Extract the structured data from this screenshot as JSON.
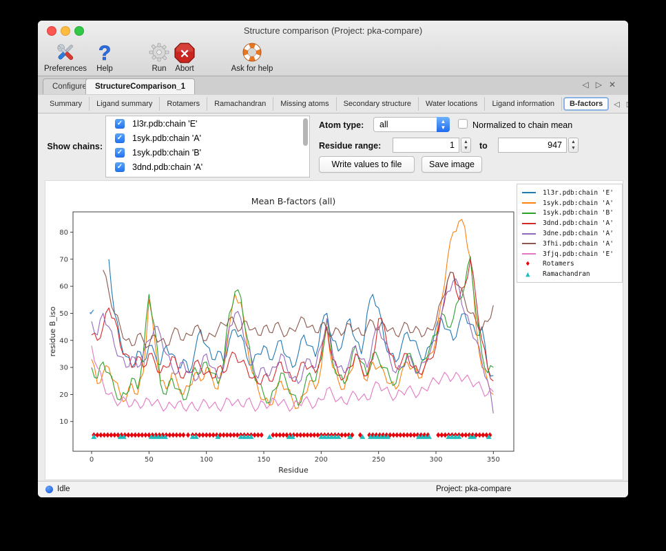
{
  "window": {
    "title": "Structure comparison (Project: pka-compare)"
  },
  "toolbar": {
    "items": [
      {
        "label": "Preferences",
        "icon": "tools-icon"
      },
      {
        "label": "Help",
        "icon": "question-mark-icon"
      },
      {
        "label": "Run",
        "icon": "gear-icon"
      },
      {
        "label": "Abort",
        "icon": "stop-x-icon"
      },
      {
        "label": "Ask for help",
        "icon": "lifebuoy-icon"
      }
    ]
  },
  "tabs": {
    "main": [
      {
        "label": "Configure",
        "active": false
      },
      {
        "label": "StructureComparison_1",
        "active": true
      }
    ],
    "nav_back": "◁",
    "nav_forward": "▷",
    "close": "✕"
  },
  "subtabs": {
    "items": [
      "Summary",
      "Ligand summary",
      "Rotamers",
      "Ramachandran",
      "Missing atoms",
      "Secondary structure",
      "Water locations",
      "Ligand information",
      "B-factors"
    ],
    "active": "B-factors",
    "nav_back": "◁",
    "nav_forward": "▷"
  },
  "controls": {
    "show_chains_label": "Show chains:",
    "chains": [
      {
        "label": "1l3r.pdb:chain 'E'",
        "checked": true
      },
      {
        "label": "1syk.pdb:chain 'A'",
        "checked": true
      },
      {
        "label": "1syk.pdb:chain 'B'",
        "checked": true
      },
      {
        "label": "3dnd.pdb:chain 'A'",
        "checked": true
      }
    ],
    "atom_type_label": "Atom type:",
    "atom_type_value": "all",
    "normalized_label": "Normalized to chain mean",
    "normalized_checked": false,
    "residue_range_label": "Residue range:",
    "residue_from": "1",
    "to_label": "to",
    "residue_to": "947",
    "write_button": "Write values to file",
    "save_button": "Save image"
  },
  "statusbar": {
    "status": "Idle",
    "project": "Project: pka-compare"
  },
  "colors": {
    "accent_blue": "#2f7cf6",
    "rotamer_red": "#e8000b",
    "ramachandran_cyan": "#1fbfbf"
  },
  "chart_data": {
    "type": "line",
    "title": "Mean B-factors (all)",
    "xlabel": "Residue",
    "ylabel": "residue B_iso",
    "xticks": [
      0,
      50,
      100,
      150,
      200,
      250,
      300,
      350
    ],
    "yticks": [
      10,
      20,
      30,
      40,
      50,
      60,
      70,
      80
    ],
    "xlim": [
      -16.2,
      367.8
    ],
    "ylim": [
      -1,
      87.5
    ],
    "grid": false,
    "legend_position": "outside-right",
    "x_start": 0,
    "x_step": 5,
    "series": [
      {
        "name": "1l3r.pdb:chain 'E'",
        "color": "#1f77b4",
        "values": [
          null,
          null,
          null,
          70,
          50,
          40,
          34,
          30,
          36,
          32,
          38,
          35,
          31,
          38,
          35,
          30,
          33,
          28,
          36,
          44,
          38,
          33,
          36,
          32,
          40,
          44,
          42,
          34,
          31,
          35,
          38,
          33,
          36,
          40,
          34,
          30,
          35,
          42,
          38,
          34,
          45,
          50,
          40,
          36,
          42,
          48,
          40,
          35,
          50,
          57,
          52,
          40,
          35,
          32,
          38,
          43,
          40,
          36,
          33,
          38,
          45,
          48,
          44,
          40,
          46,
          50,
          46,
          42,
          45,
          30,
          27
        ]
      },
      {
        "name": "1syk.pdb:chain 'A'",
        "color": "#ff7f0e",
        "values": [
          33,
          24,
          28,
          30,
          25,
          20,
          18,
          24,
          20,
          28,
          55,
          40,
          25,
          22,
          28,
          24,
          20,
          23,
          28,
          25,
          30,
          26,
          22,
          30,
          45,
          57,
          54,
          40,
          28,
          22,
          18,
          16,
          20,
          25,
          22,
          18,
          15,
          20,
          25,
          22,
          30,
          45,
          30,
          25,
          22,
          28,
          35,
          30,
          25,
          32,
          30,
          28,
          24,
          22,
          28,
          32,
          30,
          26,
          30,
          35,
          40,
          55,
          70,
          80,
          84,
          82,
          70,
          45,
          30,
          25,
          20
        ]
      },
      {
        "name": "1syk.pdb:chain 'B'",
        "color": "#2ca02c",
        "values": [
          30,
          26,
          32,
          28,
          22,
          18,
          20,
          26,
          22,
          35,
          57,
          45,
          24,
          20,
          26,
          22,
          18,
          22,
          30,
          28,
          32,
          28,
          24,
          32,
          50,
          58,
          56,
          42,
          30,
          24,
          20,
          17,
          22,
          28,
          24,
          20,
          16,
          22,
          28,
          25,
          33,
          48,
          32,
          27,
          24,
          30,
          38,
          32,
          27,
          35,
          33,
          30,
          26,
          24,
          30,
          35,
          32,
          28,
          33,
          38,
          42,
          50,
          45,
          48,
          55,
          60,
          71,
          50,
          35,
          28,
          30
        ]
      },
      {
        "name": "3dnd.pdb:chain 'A'",
        "color": "#d62728",
        "values": [
          42,
          40,
          45,
          52,
          48,
          38,
          35,
          30,
          34,
          30,
          35,
          32,
          28,
          30,
          34,
          30,
          26,
          28,
          32,
          30,
          28,
          26,
          30,
          28,
          33,
          35,
          32,
          30,
          26,
          24,
          27,
          25,
          28,
          32,
          28,
          25,
          28,
          32,
          30,
          28,
          35,
          45,
          33,
          28,
          26,
          30,
          35,
          30,
          27,
          33,
          48,
          45,
          35,
          30,
          32,
          35,
          30,
          28,
          30,
          33,
          38,
          50,
          62,
          65,
          55,
          60,
          70,
          55,
          40,
          30,
          25
        ]
      },
      {
        "name": "3dne.pdb:chain 'A'",
        "color": "#9467bd",
        "values": [
          47,
          42,
          50,
          45,
          38,
          34,
          30,
          34,
          30,
          35,
          40,
          45,
          42,
          35,
          30,
          28,
          32,
          28,
          25,
          30,
          35,
          30,
          26,
          30,
          45,
          50,
          48,
          38,
          32,
          26,
          30,
          27,
          30,
          35,
          30,
          26,
          24,
          30,
          33,
          30,
          38,
          48,
          35,
          30,
          28,
          33,
          38,
          33,
          30,
          40,
          45,
          40,
          33,
          28,
          30,
          34,
          31,
          28,
          32,
          36,
          40,
          50,
          58,
          62,
          60,
          50,
          45,
          40,
          32,
          25,
          13
        ]
      },
      {
        "name": "3fhi.pdb:chain 'A'",
        "color": "#8c564b",
        "values": [
          null,
          null,
          66,
          58,
          50,
          45,
          40,
          38,
          42,
          40,
          38,
          42,
          40,
          38,
          42,
          44,
          40,
          42,
          45,
          43,
          40,
          42,
          44,
          46,
          48,
          46,
          44,
          47,
          44,
          42,
          45,
          43,
          46,
          44,
          42,
          44,
          46,
          48,
          45,
          43,
          46,
          44,
          42,
          44,
          43,
          46,
          44,
          42,
          45,
          47,
          44,
          46,
          44,
          42,
          44,
          46,
          43,
          44,
          42,
          44,
          47,
          55,
          62,
          65,
          60,
          55,
          50,
          47,
          44,
          47,
          53
        ]
      },
      {
        "name": "3fjq.pdb:chain 'E'",
        "color": "#e377c2",
        "values": [
          38,
          30,
          24,
          20,
          18,
          17,
          18,
          16,
          17,
          16,
          18,
          17,
          16,
          15,
          16,
          17,
          15,
          16,
          15,
          16,
          17,
          16,
          15,
          16,
          18,
          17,
          16,
          18,
          16,
          15,
          17,
          16,
          18,
          17,
          16,
          15,
          17,
          18,
          17,
          16,
          18,
          22,
          20,
          18,
          17,
          19,
          20,
          19,
          18,
          22,
          24,
          22,
          20,
          19,
          21,
          22,
          21,
          20,
          22,
          24,
          25,
          26,
          27,
          26,
          27,
          26,
          25,
          24,
          22,
          20,
          21
        ]
      }
    ],
    "markers": [
      {
        "name": "Rotamers",
        "color": "#e8000b",
        "shape": "diamond",
        "glyph": "♦",
        "y": 5,
        "x": [
          2,
          5,
          8,
          11,
          14,
          17,
          20,
          23,
          26,
          29,
          32,
          35,
          38,
          41,
          44,
          47,
          50,
          53,
          56,
          59,
          62,
          65,
          68,
          71,
          74,
          77,
          80,
          84,
          88,
          91,
          94,
          97,
          100,
          103,
          106,
          109,
          112,
          115,
          118,
          121,
          124,
          127,
          130,
          133,
          136,
          139,
          142,
          145,
          148,
          158,
          161,
          164,
          167,
          170,
          173,
          176,
          179,
          182,
          185,
          188,
          191,
          194,
          197,
          200,
          203,
          206,
          209,
          212,
          215,
          218,
          221,
          224,
          227,
          234,
          242,
          245,
          248,
          251,
          254,
          257,
          260,
          263,
          266,
          269,
          272,
          275,
          278,
          281,
          284,
          287,
          290,
          293,
          302,
          305,
          308,
          311,
          314,
          317,
          320,
          323,
          326,
          329,
          332,
          335,
          338,
          341,
          344,
          347
        ]
      },
      {
        "name": "Ramachandran",
        "color": "#1fbfbf",
        "shape": "triangle",
        "glyph": "▲",
        "y": 4.4,
        "x": [
          2,
          25,
          28,
          52,
          55,
          58,
          61,
          64,
          88,
          91,
          110,
          130,
          133,
          136,
          139,
          155,
          172,
          175,
          200,
          203,
          206,
          209,
          212,
          215,
          225,
          236,
          243,
          246,
          249,
          252,
          255,
          258,
          285,
          288,
          291,
          294,
          311,
          314,
          317,
          320,
          330,
          333,
          346
        ]
      }
    ],
    "annotations": [
      {
        "glyph": "✓",
        "x": 0.5,
        "y": 50.5,
        "color": "#4a90d2"
      }
    ]
  }
}
